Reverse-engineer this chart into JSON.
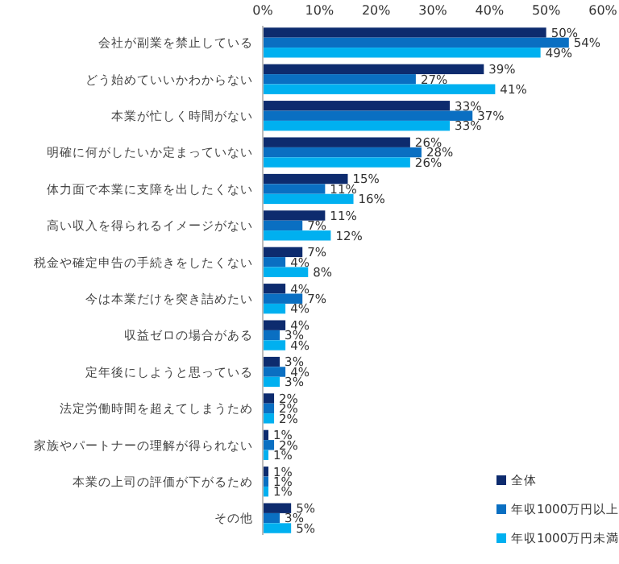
{
  "chart_data": {
    "type": "bar",
    "orientation": "horizontal",
    "categories": [
      "会社が副業を禁止している",
      "どう始めていいかわからない",
      "本業が忙しく時間がない",
      "明確に何がしたいか定まっていない",
      "体力面で本業に支障を出したくない",
      "高い収入を得られるイメージがない",
      "税金や確定申告の手続きをしたくない",
      "今は本業だけを突き詰めたい",
      "収益ゼロの場合がある",
      "定年後にしようと思っている",
      "法定労働時間を超えてしまうため",
      "家族やパートナーの理解が得られない",
      "本業の上司の評価が下がるため",
      "その他"
    ],
    "series": [
      {
        "name": "全体",
        "color": "#0d2b6e",
        "values": [
          50,
          39,
          33,
          26,
          15,
          11,
          7,
          4,
          4,
          3,
          2,
          1,
          1,
          5
        ],
        "value_labels": [
          "50%",
          "39%",
          "33%",
          "26%",
          "15%",
          "11%",
          "7%",
          "4%",
          "4%",
          "3%",
          "2%",
          "1%",
          "1%",
          "5%"
        ]
      },
      {
        "name": "年収1000万円以上",
        "color": "#0a6fc2",
        "values": [
          54,
          27,
          37,
          28,
          11,
          7,
          4,
          7,
          3,
          4,
          2,
          2,
          1,
          3
        ],
        "value_labels": [
          "54%",
          "27%",
          "37%",
          "28%",
          "11%",
          "7%",
          "4%",
          "7%",
          "3%",
          "4%",
          "2%",
          "2%",
          "1%",
          "3%"
        ]
      },
      {
        "name": "年収1000万円未満",
        "color": "#00b0f0",
        "values": [
          49,
          41,
          33,
          26,
          16,
          12,
          8,
          4,
          4,
          3,
          2,
          1,
          1,
          5
        ],
        "value_labels": [
          "49%",
          "41%",
          "33%",
          "26%",
          "16%",
          "12%",
          "8%",
          "4%",
          "4%",
          "3%",
          "2%",
          "1%",
          "1%",
          "5%"
        ]
      }
    ],
    "xlim": [
      0,
      60
    ],
    "xticks": [
      {
        "value": 0,
        "label": "0%"
      },
      {
        "value": 10,
        "label": "10%"
      },
      {
        "value": 20,
        "label": "20%"
      },
      {
        "value": 30,
        "label": "30%"
      },
      {
        "value": 40,
        "label": "40%"
      },
      {
        "value": 50,
        "label": "50%"
      },
      {
        "value": 60,
        "label": "60%"
      }
    ],
    "legend": "bottom right",
    "grid": false
  }
}
